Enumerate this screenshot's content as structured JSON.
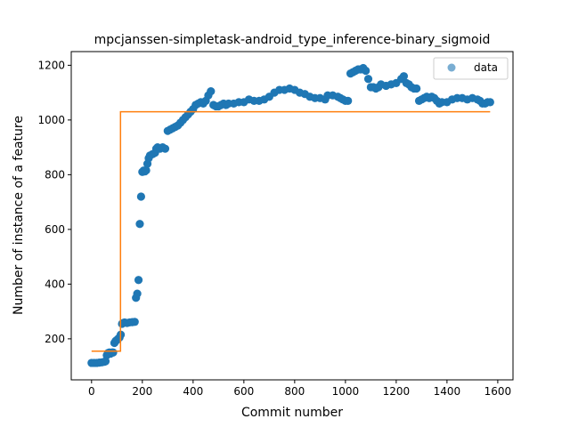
{
  "chart_data": {
    "type": "scatter",
    "title": "mpcjanssen-simpletask-android_type_inference-binary_sigmoid",
    "xlabel": "Commit number",
    "ylabel": "Number of instance of a feature",
    "xlim": [
      -80,
      1660
    ],
    "ylim": [
      50,
      1250
    ],
    "xticks": [
      0,
      200,
      400,
      600,
      800,
      1000,
      1200,
      1400,
      1600
    ],
    "yticks": [
      200,
      400,
      600,
      800,
      1000,
      1200
    ],
    "legend": {
      "position": "top-right",
      "entries": [
        "data"
      ]
    },
    "colors": {
      "data": "#1f77b4",
      "fit": "#ff7f0e"
    },
    "series": [
      {
        "name": "data",
        "kind": "scatter",
        "points": [
          [
            0,
            112
          ],
          [
            10,
            112
          ],
          [
            20,
            112
          ],
          [
            30,
            113
          ],
          [
            40,
            114
          ],
          [
            50,
            116
          ],
          [
            55,
            118
          ],
          [
            60,
            140
          ],
          [
            65,
            148
          ],
          [
            70,
            150
          ],
          [
            75,
            146
          ],
          [
            80,
            150
          ],
          [
            85,
            150
          ],
          [
            90,
            185
          ],
          [
            95,
            192
          ],
          [
            100,
            196
          ],
          [
            105,
            200
          ],
          [
            110,
            205
          ],
          [
            115,
            215
          ],
          [
            120,
            255
          ],
          [
            125,
            258
          ],
          [
            130,
            260
          ],
          [
            140,
            258
          ],
          [
            150,
            260
          ],
          [
            160,
            261
          ],
          [
            170,
            262
          ],
          [
            175,
            350
          ],
          [
            180,
            365
          ],
          [
            185,
            415
          ],
          [
            190,
            620
          ],
          [
            195,
            720
          ],
          [
            200,
            810
          ],
          [
            205,
            815
          ],
          [
            210,
            812
          ],
          [
            215,
            816
          ],
          [
            220,
            840
          ],
          [
            225,
            860
          ],
          [
            230,
            870
          ],
          [
            240,
            875
          ],
          [
            250,
            880
          ],
          [
            255,
            895
          ],
          [
            260,
            900
          ],
          [
            270,
            895
          ],
          [
            280,
            900
          ],
          [
            290,
            895
          ],
          [
            300,
            960
          ],
          [
            310,
            965
          ],
          [
            320,
            970
          ],
          [
            330,
            975
          ],
          [
            340,
            980
          ],
          [
            350,
            990
          ],
          [
            360,
            1000
          ],
          [
            370,
            1010
          ],
          [
            380,
            1020
          ],
          [
            390,
            1030
          ],
          [
            400,
            1040
          ],
          [
            410,
            1055
          ],
          [
            420,
            1060
          ],
          [
            430,
            1065
          ],
          [
            440,
            1060
          ],
          [
            450,
            1070
          ],
          [
            460,
            1090
          ],
          [
            470,
            1105
          ],
          [
            480,
            1055
          ],
          [
            490,
            1050
          ],
          [
            500,
            1050
          ],
          [
            510,
            1055
          ],
          [
            520,
            1060
          ],
          [
            530,
            1055
          ],
          [
            540,
            1060
          ],
          [
            560,
            1060
          ],
          [
            580,
            1065
          ],
          [
            600,
            1065
          ],
          [
            620,
            1075
          ],
          [
            640,
            1070
          ],
          [
            660,
            1070
          ],
          [
            680,
            1075
          ],
          [
            700,
            1085
          ],
          [
            720,
            1100
          ],
          [
            740,
            1110
          ],
          [
            760,
            1110
          ],
          [
            780,
            1115
          ],
          [
            800,
            1110
          ],
          [
            820,
            1100
          ],
          [
            840,
            1095
          ],
          [
            860,
            1085
          ],
          [
            880,
            1080
          ],
          [
            900,
            1080
          ],
          [
            920,
            1075
          ],
          [
            930,
            1090
          ],
          [
            950,
            1090
          ],
          [
            970,
            1085
          ],
          [
            980,
            1080
          ],
          [
            990,
            1075
          ],
          [
            1000,
            1070
          ],
          [
            1010,
            1070
          ],
          [
            1020,
            1170
          ],
          [
            1030,
            1175
          ],
          [
            1040,
            1180
          ],
          [
            1050,
            1185
          ],
          [
            1060,
            1185
          ],
          [
            1070,
            1190
          ],
          [
            1080,
            1180
          ],
          [
            1090,
            1150
          ],
          [
            1100,
            1120
          ],
          [
            1110,
            1120
          ],
          [
            1120,
            1115
          ],
          [
            1130,
            1120
          ],
          [
            1140,
            1130
          ],
          [
            1160,
            1125
          ],
          [
            1180,
            1130
          ],
          [
            1200,
            1135
          ],
          [
            1220,
            1150
          ],
          [
            1230,
            1160
          ],
          [
            1240,
            1135
          ],
          [
            1250,
            1130
          ],
          [
            1260,
            1120
          ],
          [
            1270,
            1115
          ],
          [
            1280,
            1115
          ],
          [
            1290,
            1070
          ],
          [
            1300,
            1075
          ],
          [
            1310,
            1080
          ],
          [
            1320,
            1085
          ],
          [
            1330,
            1080
          ],
          [
            1340,
            1085
          ],
          [
            1350,
            1080
          ],
          [
            1360,
            1070
          ],
          [
            1370,
            1060
          ],
          [
            1380,
            1065
          ],
          [
            1400,
            1065
          ],
          [
            1420,
            1075
          ],
          [
            1440,
            1080
          ],
          [
            1460,
            1080
          ],
          [
            1480,
            1075
          ],
          [
            1500,
            1080
          ],
          [
            1520,
            1075
          ],
          [
            1530,
            1070
          ],
          [
            1540,
            1060
          ],
          [
            1550,
            1060
          ],
          [
            1560,
            1065
          ],
          [
            1570,
            1065
          ]
        ]
      },
      {
        "name": "",
        "kind": "step-line",
        "points": [
          [
            0,
            155
          ],
          [
            114,
            155
          ],
          [
            114,
            1030
          ],
          [
            1570,
            1030
          ]
        ]
      }
    ]
  }
}
